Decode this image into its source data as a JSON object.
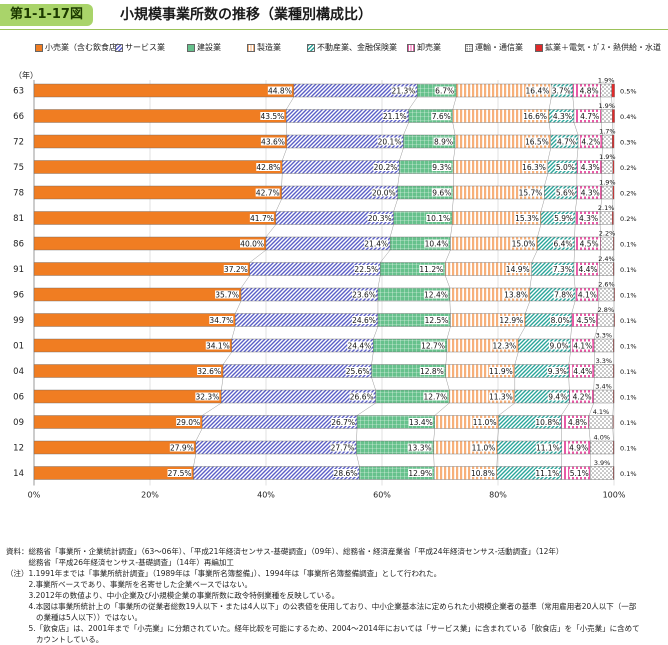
{
  "header": {
    "figure_number": "第1-1-17図",
    "title": "小規模事業所数の推移（業種別構成比）"
  },
  "chart_data": {
    "type": "bar",
    "stacked": true,
    "orientation": "horizontal",
    "unit_label": "（年）",
    "categories": [
      "63",
      "66",
      "72",
      "75",
      "78",
      "81",
      "86",
      "91",
      "96",
      "99",
      "01",
      "04",
      "06",
      "09",
      "12",
      "14"
    ],
    "xlim": [
      0,
      100
    ],
    "xticks": [
      "0%",
      "20%",
      "40%",
      "60%",
      "80%",
      "100%"
    ],
    "series": [
      {
        "name": "小売業（含む飲食店）",
        "color": "#f07d22",
        "pattern": "solid",
        "values": [
          44.8,
          43.5,
          43.6,
          42.8,
          42.7,
          41.7,
          40.0,
          37.2,
          35.7,
          34.7,
          34.1,
          32.6,
          32.3,
          29.0,
          27.9,
          27.5
        ]
      },
      {
        "name": "サービス業",
        "color": "#5b5fc7",
        "pattern": "diagonal",
        "values": [
          21.3,
          21.1,
          20.1,
          20.2,
          20.0,
          20.3,
          21.4,
          22.5,
          23.6,
          24.6,
          24.4,
          25.6,
          26.6,
          26.7,
          27.7,
          28.6
        ]
      },
      {
        "name": "建設業",
        "color": "#66c18c",
        "pattern": "grid",
        "values": [
          6.7,
          7.6,
          8.9,
          9.3,
          9.6,
          10.1,
          10.4,
          11.2,
          12.4,
          12.5,
          12.7,
          12.8,
          12.7,
          13.4,
          13.3,
          12.9
        ]
      },
      {
        "name": "製造業",
        "color": "#f7b07a",
        "pattern": "vertical",
        "values": [
          16.4,
          16.6,
          16.5,
          16.3,
          15.7,
          15.3,
          15.0,
          14.9,
          13.8,
          12.9,
          12.3,
          11.9,
          11.3,
          11.0,
          11.0,
          10.8
        ]
      },
      {
        "name": "不動産業、金融保険業",
        "color": "#2aa59a",
        "pattern": "diagonal",
        "values": [
          3.7,
          4.3,
          4.7,
          5.0,
          5.6,
          5.9,
          6.4,
          7.3,
          7.8,
          8.0,
          9.0,
          9.3,
          9.4,
          10.8,
          11.1,
          11.1
        ]
      },
      {
        "name": "卸売業",
        "color": "#e85aa6",
        "pattern": "stripe",
        "values": [
          4.8,
          4.7,
          4.2,
          4.3,
          4.3,
          4.3,
          4.5,
          4.4,
          4.1,
          4.5,
          4.1,
          4.4,
          4.2,
          4.8,
          4.9,
          5.1
        ]
      },
      {
        "name": "運輸・通信業",
        "color": "#8a8a8a",
        "pattern": "dots",
        "values": [
          1.9,
          1.9,
          1.7,
          1.9,
          1.9,
          2.1,
          2.2,
          2.4,
          2.6,
          2.8,
          3.3,
          3.3,
          3.4,
          4.1,
          4.0,
          3.9
        ]
      },
      {
        "name": "鉱業＋電気・ｶﾞｽ・熱供給・水道",
        "color": "#e02a2a",
        "pattern": "solid",
        "values": [
          0.5,
          0.4,
          0.3,
          0.2,
          0.2,
          0.2,
          0.1,
          0.1,
          0.1,
          0.1,
          0.1,
          0.1,
          0.1,
          0.1,
          0.1,
          0.1
        ]
      }
    ]
  },
  "notes": [
    "資料：総務省「事業所・企業統計調査」（63〜06年）、「平成21年経済センサス-基礎調査」（09年）、総務省・経済産業省「平成24年経済センサス-活動調査」（12年）",
    "　　　総務省「平成26年経済センサス-基礎調査」（14年）再編加工",
    "（注）1.1991年までは「事業所統計調査」（1989年は「事業所名簿整備」）、1994年は「事業所名簿整備調査」として行われた。",
    "　　　2.事業所ベースであり、事業所を名寄せした企業ベースではない。",
    "　　　3.2012年の数値より、中小企業及び小規模企業の事業所数に政令特例業種を反映している。",
    "　　　4.本図は事業所統計上の「事業所の従業者総数19人以下・または4人以下」の公表値を使用しており、中小企業基本法に定められた小規模企業者の基準（常用雇用者20人以下（一部",
    "　　　　の業種は5人以下））ではない。",
    "　　　5.「飲食店」は、2001年まで「小売業」に分類されていた。経年比較を可能にするため、2004〜2014年においては「サービス業」に含まれている「飲食店」を「小売業」に含めて",
    "　　　　カウントしている。"
  ]
}
